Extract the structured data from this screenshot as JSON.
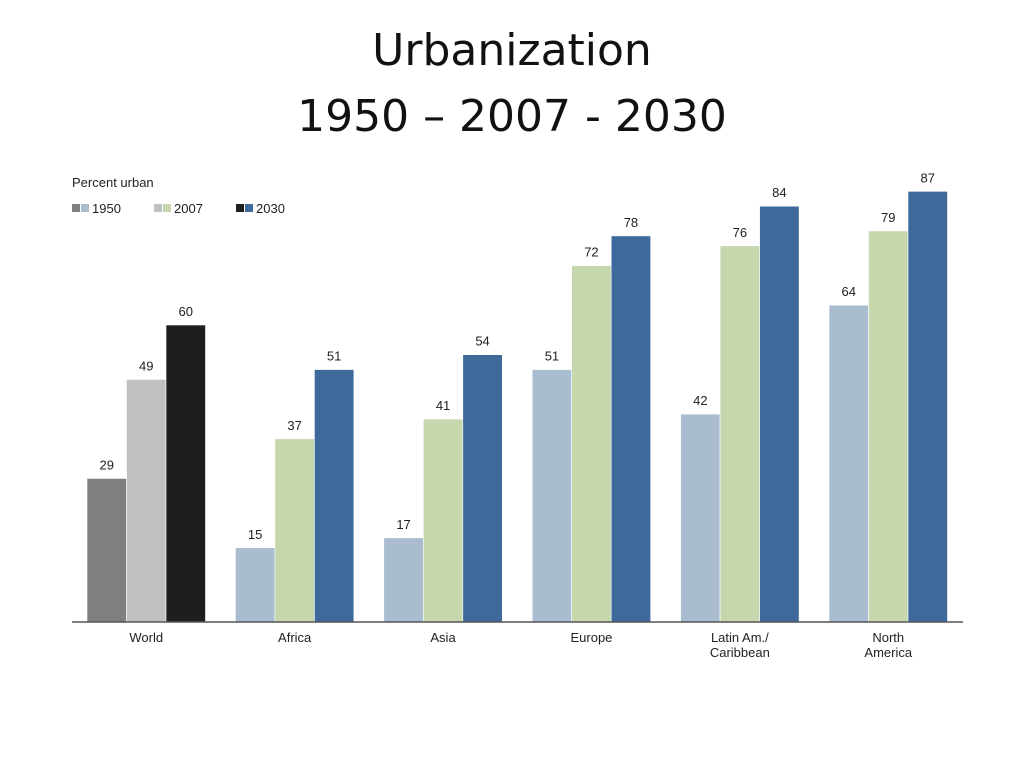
{
  "title": {
    "line1": "Urbanization",
    "line2": "1950 – 2007 - 2030"
  },
  "chart_data": {
    "type": "bar",
    "ylabel": "Percent urban",
    "ylim": [
      0,
      100
    ],
    "grid": false,
    "legend_position": "top-left",
    "categories": [
      "World",
      "Africa",
      "Asia",
      "Europe",
      "Latin Am./\nCaribbean",
      "North\nAmerica"
    ],
    "series": [
      {
        "name": "1950",
        "values": [
          29,
          15,
          17,
          51,
          42,
          64
        ]
      },
      {
        "name": "2007",
        "values": [
          49,
          37,
          41,
          72,
          76,
          79
        ]
      },
      {
        "name": "2030",
        "values": [
          60,
          51,
          54,
          78,
          84,
          87
        ]
      }
    ],
    "colors": {
      "world": [
        "#808080",
        "#c0c0c0",
        "#1e1e1e"
      ],
      "regions": [
        "#aabdd0",
        "#c6d6ad",
        "#3d6a9a"
      ]
    },
    "legend_colors": [
      [
        "#808080",
        "#aabdd0"
      ],
      [
        "#c0c0c0",
        "#c6d6ad"
      ],
      [
        "#1e1e1e",
        "#3d6a9a"
      ]
    ]
  }
}
